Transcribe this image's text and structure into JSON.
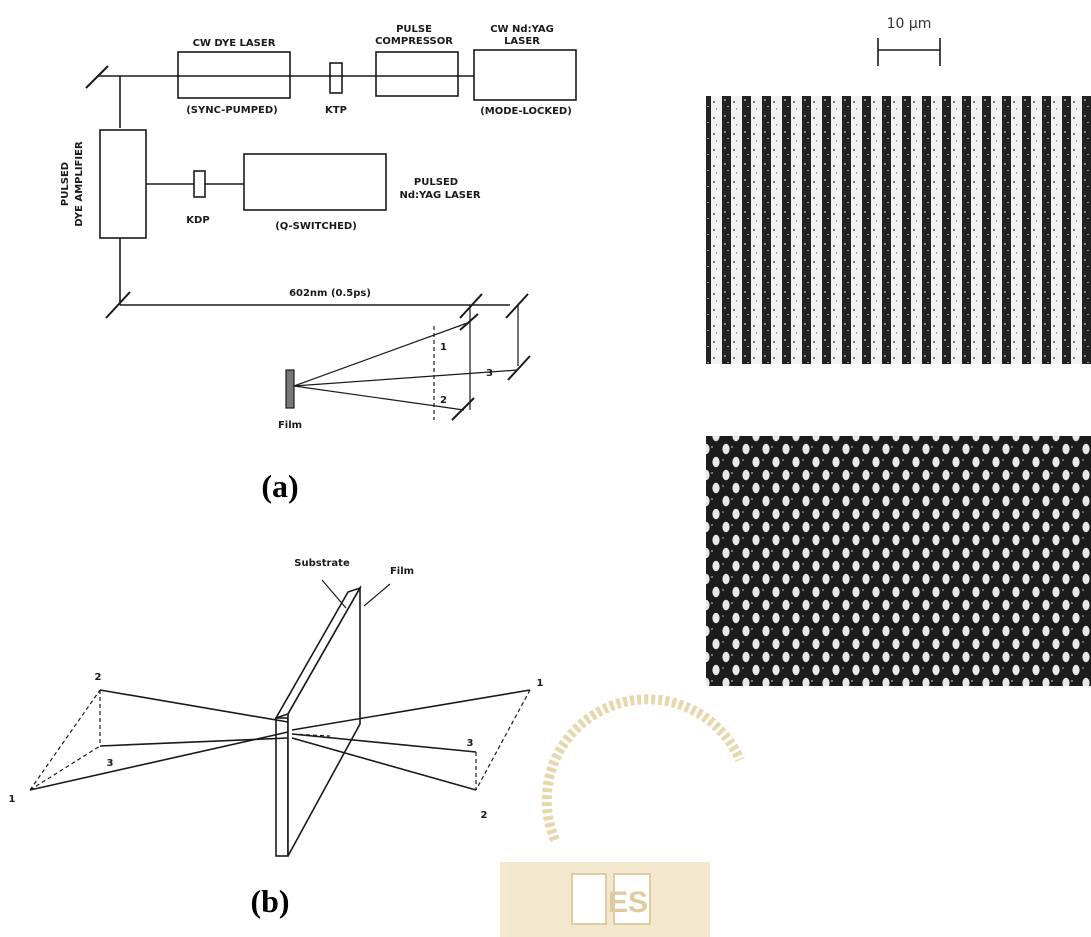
{
  "figure_a": {
    "caption": "(a)",
    "cw_dye_laser_top": "CW  DYE  LASER",
    "cw_dye_laser_bottom": "(SYNC-PUMPED)",
    "ktp": "KTP",
    "pulse_compressor_top": "PULSE",
    "pulse_compressor_bottom": "COMPRESSOR",
    "cw_ndyag_top": "CW  Nd:YAG",
    "cw_ndyag_mid": "LASER",
    "cw_ndyag_bottom": "(MODE-LOCKED)",
    "amplifier_line1": "PULSED",
    "amplifier_line2": "DYE  AMPLIFIER",
    "kdp": "KDP",
    "pulsed_ndyag_top": "PULSED",
    "pulsed_ndyag_bottom": "Nd:YAG  LASER",
    "q_switched": "(Q-SWITCHED)",
    "beam_label": "602nm (0.5ps)",
    "beam_1": "1",
    "beam_2": "2",
    "beam_3": "3",
    "film": "Film"
  },
  "figure_b": {
    "caption": "(b)",
    "substrate": "Substrate",
    "film": "Film",
    "left_1": "1",
    "left_2": "2",
    "left_3": "3",
    "right_1": "1",
    "right_2": "2",
    "right_3": "3"
  },
  "micrographs": {
    "scale_bar": "10 μm",
    "top_pattern": "vertical grating lines",
    "bottom_pattern": "hexagonal dot lattice"
  },
  "watermark": {
    "text": "ES"
  }
}
